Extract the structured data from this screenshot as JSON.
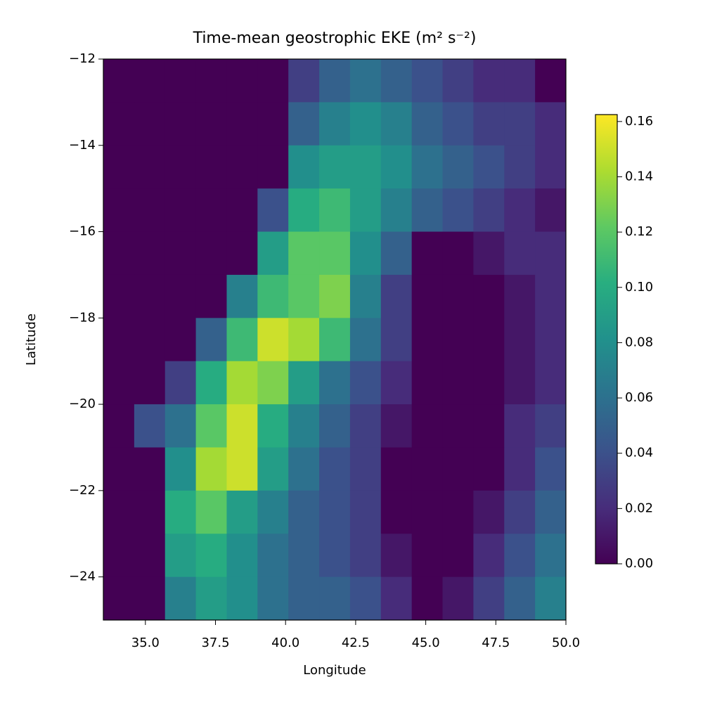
{
  "chart_data": {
    "type": "heatmap",
    "title": "Time-mean geostrophic EKE (m² s⁻²)",
    "x_label": "Longitude",
    "y_label": "Latitude",
    "colormap": "viridis",
    "xlim": [
      33.5,
      50
    ],
    "ylim": [
      -25,
      -12
    ],
    "xticks": [
      {
        "value": 35,
        "label": "35.0"
      },
      {
        "value": 37.5,
        "label": "37.5"
      },
      {
        "value": 40,
        "label": "40.0"
      },
      {
        "value": 42.5,
        "label": "42.5"
      },
      {
        "value": 45,
        "label": "45.0"
      },
      {
        "value": 47.5,
        "label": "47.5"
      },
      {
        "value": 50,
        "label": "50.0"
      }
    ],
    "yticks": [
      {
        "value": -12,
        "label": "−12"
      },
      {
        "value": -14,
        "label": "−14"
      },
      {
        "value": -16,
        "label": "−16"
      },
      {
        "value": -18,
        "label": "−18"
      },
      {
        "value": -20,
        "label": "−20"
      },
      {
        "value": -22,
        "label": "−22"
      },
      {
        "value": -24,
        "label": "−24"
      }
    ],
    "clim": [
      0,
      0.1625
    ],
    "cticks": [
      {
        "value": 0,
        "label": "0.00"
      },
      {
        "value": 0.02,
        "label": "0.02"
      },
      {
        "value": 0.04,
        "label": "0.04"
      },
      {
        "value": 0.06,
        "label": "0.06"
      },
      {
        "value": 0.08,
        "label": "0.08"
      },
      {
        "value": 0.1,
        "label": "0.10"
      },
      {
        "value": 0.12,
        "label": "0.12"
      },
      {
        "value": 0.14,
        "label": "0.14"
      },
      {
        "value": 0.16,
        "label": "0.16"
      }
    ],
    "x_edges": [
      33.5,
      34.6,
      35.7,
      36.8,
      37.9,
      39.0,
      40.1,
      41.2,
      42.3,
      43.4,
      44.5,
      45.6,
      46.7,
      47.8,
      48.9,
      50.0
    ],
    "y_edges": [
      -12,
      -13,
      -14,
      -15,
      -16,
      -17,
      -18,
      -19,
      -20,
      -21,
      -22,
      -23,
      -24,
      -25
    ],
    "values": [
      [
        0,
        0,
        0,
        0,
        0,
        0,
        0.03,
        0.05,
        0.06,
        0.05,
        0.04,
        0.03,
        0.02,
        0.02,
        0
      ],
      [
        0,
        0,
        0,
        0,
        0,
        0,
        0.05,
        0.07,
        0.08,
        0.07,
        0.05,
        0.04,
        0.03,
        0.03,
        0.02
      ],
      [
        0,
        0,
        0,
        0,
        0,
        0,
        0.08,
        0.09,
        0.09,
        0.08,
        0.06,
        0.05,
        0.04,
        0.03,
        0.02
      ],
      [
        0,
        0,
        0,
        0,
        0,
        0.04,
        0.1,
        0.11,
        0.09,
        0.07,
        0.05,
        0.04,
        0.03,
        0.02,
        0.01
      ],
      [
        0,
        0,
        0,
        0,
        0,
        0.09,
        0.12,
        0.12,
        0.08,
        0.05,
        0,
        0,
        0.01,
        0.02,
        0.02
      ],
      [
        0,
        0,
        0,
        0,
        0.07,
        0.11,
        0.12,
        0.13,
        0.07,
        0.03,
        0,
        0,
        0,
        0.01,
        0.02
      ],
      [
        0,
        0,
        0,
        0.05,
        0.11,
        0.15,
        0.14,
        0.11,
        0.06,
        0.03,
        0,
        0,
        0,
        0.01,
        0.02
      ],
      [
        0,
        0,
        0.03,
        0.1,
        0.14,
        0.13,
        0.09,
        0.06,
        0.04,
        0.02,
        0,
        0,
        0,
        0.01,
        0.02
      ],
      [
        0,
        0.04,
        0.06,
        0.12,
        0.15,
        0.1,
        0.07,
        0.05,
        0.03,
        0.01,
        0,
        0,
        0,
        0.02,
        0.03
      ],
      [
        0,
        0,
        0.08,
        0.14,
        0.15,
        0.09,
        0.06,
        0.04,
        0.03,
        0,
        0,
        0,
        0,
        0.02,
        0.04
      ],
      [
        0,
        0,
        0.1,
        0.12,
        0.09,
        0.07,
        0.05,
        0.04,
        0.03,
        0,
        0,
        0,
        0.01,
        0.03,
        0.05
      ],
      [
        0,
        0,
        0.09,
        0.1,
        0.08,
        0.06,
        0.05,
        0.04,
        0.03,
        0.01,
        0,
        0,
        0.02,
        0.04,
        0.06
      ],
      [
        0,
        0,
        0.07,
        0.09,
        0.08,
        0.06,
        0.05,
        0.05,
        0.04,
        0.02,
        0,
        0.01,
        0.03,
        0.05,
        0.07
      ]
    ]
  }
}
